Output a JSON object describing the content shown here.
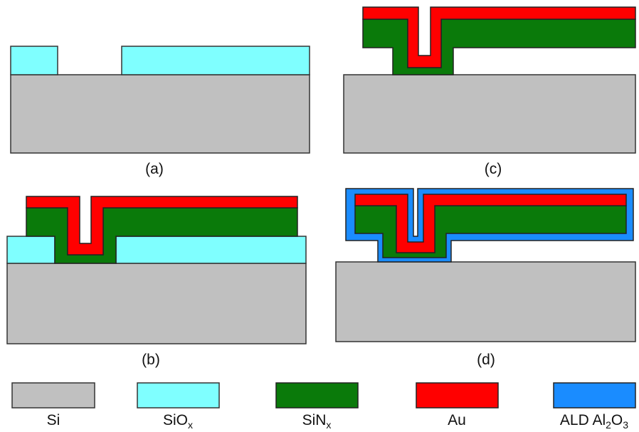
{
  "panels": [
    {
      "label": "(a)"
    },
    {
      "label": "(b)"
    },
    {
      "label": "(c)"
    },
    {
      "label": "(d)"
    }
  ],
  "legend": [
    {
      "label": [
        "Si"
      ]
    },
    {
      "label": [
        "SiO",
        "x"
      ]
    },
    {
      "label": [
        "SiN",
        "x"
      ]
    },
    {
      "label": [
        "Au"
      ]
    },
    {
      "label": [
        "ALD Al",
        "2",
        "O",
        "3"
      ]
    }
  ]
}
